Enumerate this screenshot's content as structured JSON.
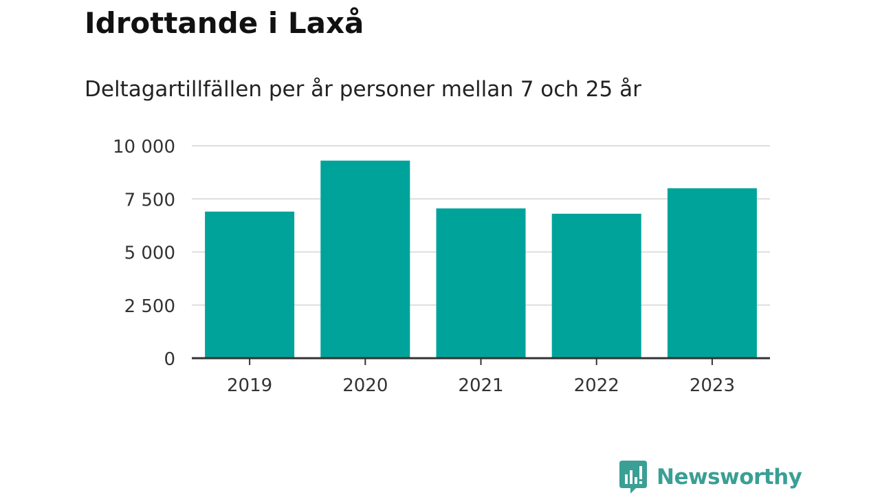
{
  "colors": {
    "bar": "#00a39a",
    "grid": "#dddddd",
    "axis": "#333333",
    "brand": "#3a9f94"
  },
  "brand": {
    "name": "Newsworthy",
    "icon": "newsworthy-chart-bubble-icon"
  },
  "chart_data": {
    "type": "bar",
    "title": "Idrottande i Laxå",
    "subtitle": "Deltagartillfällen per år personer mellan 7 och 25 år",
    "xlabel": "",
    "ylabel": "",
    "categories": [
      "2019",
      "2020",
      "2021",
      "2022",
      "2023"
    ],
    "values": [
      6900,
      9300,
      7050,
      6800,
      8000
    ],
    "ylim": [
      0,
      10000
    ],
    "yticks": [
      0,
      2500,
      5000,
      7500,
      10000
    ],
    "ytick_labels": [
      "0",
      "2 500",
      "5 000",
      "7 500",
      "10 000"
    ],
    "grid": true,
    "legend": false
  }
}
